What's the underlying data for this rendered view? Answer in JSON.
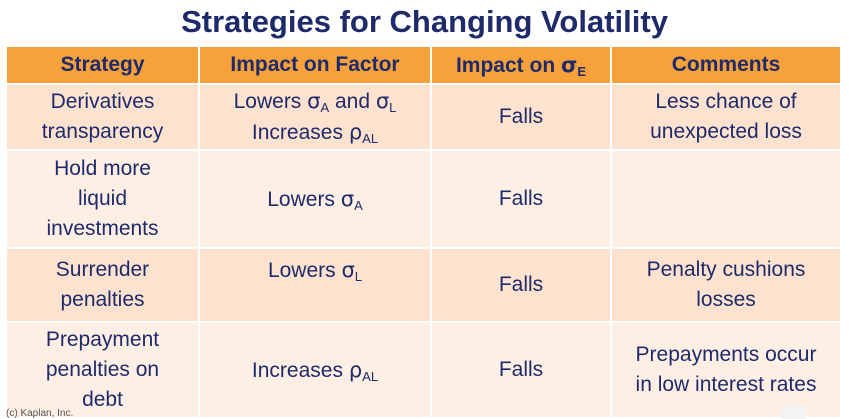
{
  "title": "Strategies for Changing Volatility",
  "headers": {
    "strategy": "Strategy",
    "impact_factor": "Impact on Factor",
    "impact_e_prefix": "Impact on ",
    "impact_e_sym": "σ",
    "impact_e_sub": "E",
    "comments": "Comments"
  },
  "rows": [
    {
      "strategy_lines": [
        "Derivatives",
        "transparency"
      ],
      "factor_1": {
        "prefix": "Lowers ",
        "sym1": "σ",
        "sub1": "A",
        "mid": " and ",
        "sym2": "σ",
        "sub2": "L"
      },
      "factor_2": {
        "prefix": "Increases ",
        "sym": "ρ",
        "sub": "AL"
      },
      "impact": "Falls",
      "comment_lines": [
        "Less chance of",
        "unexpected loss"
      ]
    },
    {
      "strategy_lines": [
        "Hold more",
        "liquid",
        "investments"
      ],
      "factor": {
        "prefix": "Lowers ",
        "sym": "σ",
        "sub": "A"
      },
      "impact": "Falls",
      "comment_lines": []
    },
    {
      "strategy_lines": [
        "Surrender",
        "penalties"
      ],
      "factor": {
        "prefix": "Lowers ",
        "sym": "σ",
        "sub": "L"
      },
      "impact": "Falls",
      "comment_lines": [
        "Penalty cushions",
        "losses"
      ]
    },
    {
      "strategy_lines": [
        "Prepayment",
        "penalties on",
        "debt"
      ],
      "factor": {
        "prefix": "Increases ",
        "sym": "ρ",
        "sub": "AL"
      },
      "impact": "Falls",
      "comment_lines": [
        "Prepayments occur",
        "in low interest rates"
      ]
    }
  ],
  "footer": "(c) Kaplan, Inc.",
  "colors": {
    "header": "#f6a13a",
    "row_odd": "#fde3cf",
    "row_even": "#feefe4",
    "text": "#1f2a6b"
  }
}
